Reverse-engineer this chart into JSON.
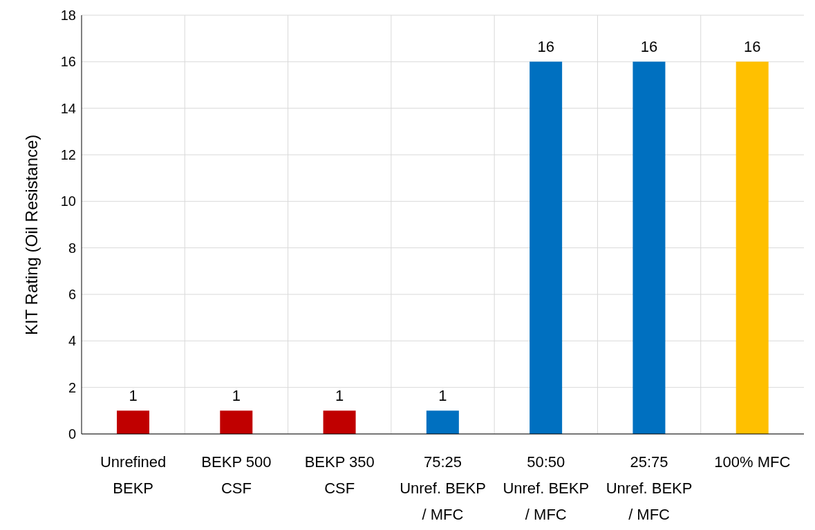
{
  "chart_data": {
    "type": "bar",
    "ylabel": "KIT Rating (Oil Resistance)",
    "categories": [
      "Unrefined BEKP",
      "BEKP 500 CSF",
      "BEKP 350 CSF",
      "75:25 Unref. BEKP / MFC",
      "50:50 Unref. BEKP / MFC",
      "25:75 Unref. BEKP / MFC",
      "100% MFC"
    ],
    "values": [
      1,
      1,
      1,
      1,
      16,
      16,
      16
    ],
    "colors": [
      "#c00000",
      "#c00000",
      "#c00000",
      "#0070c0",
      "#0070c0",
      "#0070c0",
      "#ffc000"
    ],
    "ylim": [
      0,
      18
    ],
    "yticks": [
      0,
      2,
      4,
      6,
      8,
      10,
      12,
      14,
      16,
      18
    ],
    "grid": true,
    "data_labels": true
  }
}
